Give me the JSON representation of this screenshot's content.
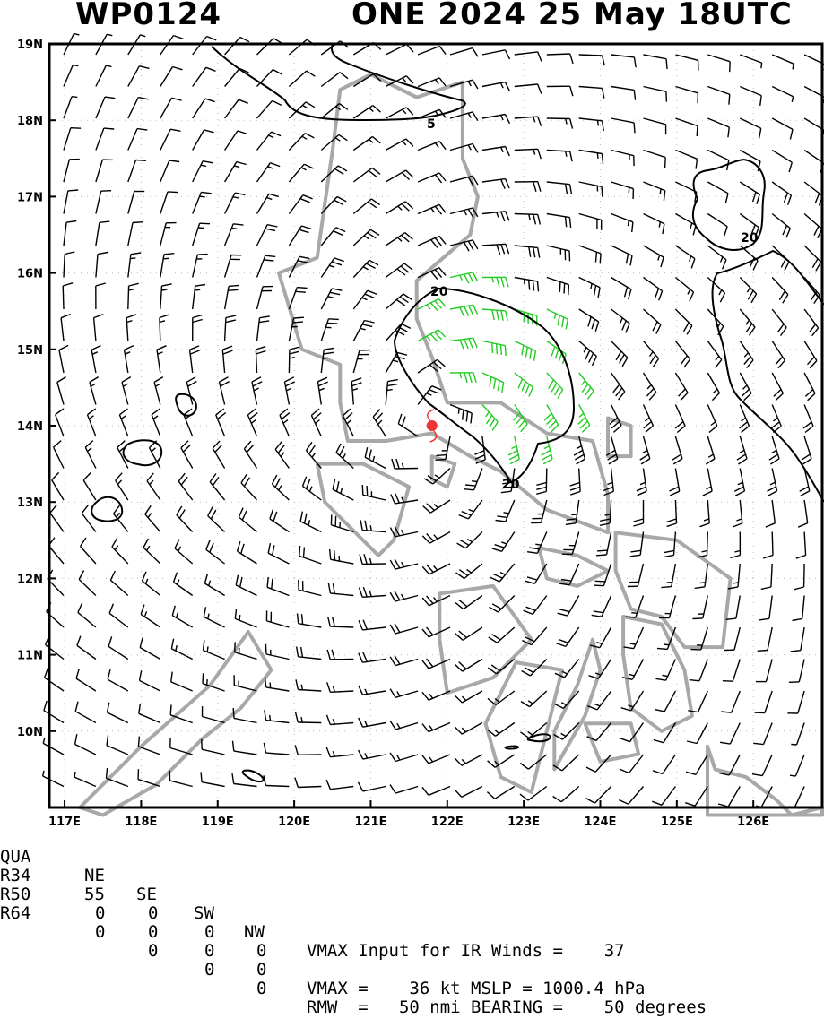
{
  "title": {
    "left": "WP0124",
    "right": "ONE 2024 25 May 18UTC"
  },
  "map": {
    "lat_labels": [
      "19N",
      "18N",
      "17N",
      "16N",
      "15N",
      "14N",
      "13N",
      "12N",
      "11N",
      "10N"
    ],
    "lon_labels": [
      "117E",
      "118E",
      "119E",
      "120E",
      "121E",
      "122E",
      "123E",
      "124E",
      "125E",
      "126E"
    ],
    "lat_range": [
      9.0,
      19.0
    ],
    "lon_range": [
      116.8,
      126.9
    ],
    "storm_center": {
      "lat": 14.0,
      "lon": 121.8
    },
    "contour_labels": [
      "5",
      "20",
      "20",
      "20"
    ],
    "colors": {
      "wind_barb": "#000000",
      "wind_34kt": "#22cc22",
      "wind_50kt": "#e0a030",
      "coastline": "#a8a8a8",
      "contour": "#000000",
      "storm_symbol": "#ee3333"
    }
  },
  "table": {
    "header": [
      "QUA",
      "NE",
      "SE",
      "SW",
      "NW"
    ],
    "rows": [
      {
        "label": "R34",
        "values": [
          "55",
          "0",
          "0",
          "0"
        ]
      },
      {
        "label": "R50",
        "values": [
          "0",
          "0",
          "0",
          "0"
        ]
      },
      {
        "label": "R64",
        "values": [
          "0",
          "0",
          "0",
          "0"
        ]
      }
    ]
  },
  "stats": {
    "vmax_input": "VMAX Input for IR Winds =    37",
    "vmax_mslp": "VMAX =    36 kt MSLP = 1000.4 hPa",
    "rmw": "RMW  =   50 nmi BEARING =    50 degrees"
  }
}
